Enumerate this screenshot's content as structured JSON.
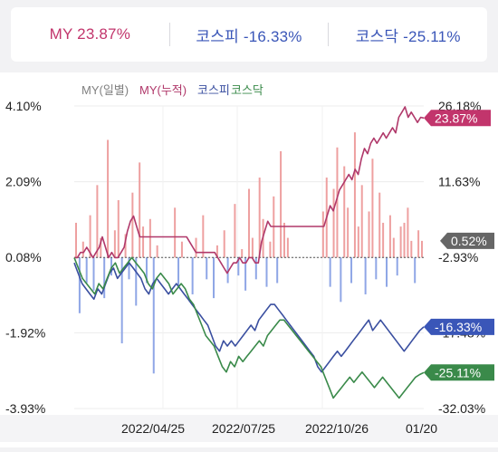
{
  "summary": {
    "my": {
      "label": "MY",
      "value": "23.87%",
      "color": "#c2356c"
    },
    "kospi": {
      "label": "코스피",
      "value": "-16.33%",
      "color": "#3a56b8"
    },
    "kosdaq": {
      "label": "코스닥",
      "value": "-25.11%",
      "color": "#3a56b8"
    }
  },
  "chart_data": {
    "type": "line",
    "legend": {
      "position": "top-left",
      "entries": [
        {
          "name": "MY(일별)",
          "color": "#808080"
        },
        {
          "name": "MY(누적)",
          "color": "#b0386a"
        },
        {
          "name": "코스피",
          "color": "#3a4fa0"
        },
        {
          "name": "코스닥",
          "color": "#3a8a4a"
        }
      ]
    },
    "left_axis": {
      "ticks": [
        "4.10%",
        "2.09%",
        "0.08%",
        "-1.92%",
        "-3.93%"
      ],
      "values": [
        4.1,
        2.09,
        0.08,
        -1.92,
        -3.93
      ],
      "range": [
        -3.93,
        4.1
      ]
    },
    "right_axis": {
      "ticks": [
        "26.18%",
        "11.63%",
        "-2.93%",
        "-17.48%",
        "-32.03%"
      ],
      "values": [
        26.18,
        11.63,
        -2.93,
        -17.48,
        -32.03
      ],
      "range": [
        -32.03,
        26.18
      ]
    },
    "x_labels": [
      "2022/04/25",
      "2022/07/25",
      "2022/10/26",
      "01/20"
    ],
    "end_labels": [
      {
        "text": "23.87%",
        "color": "#c2356c"
      },
      {
        "text": "0.52%",
        "color": "#666666"
      },
      {
        "text": "-16.33%",
        "color": "#3a56b8"
      },
      {
        "text": "-25.11%",
        "color": "#3a8a4a"
      }
    ],
    "series": [
      {
        "name": "MY(누적)",
        "axis": "right",
        "color": "#b0386a",
        "values": [
          -3,
          -3,
          -2,
          -2,
          -1,
          -2,
          -3,
          -2,
          -1,
          1,
          -1,
          -3,
          -2,
          -3,
          -3,
          -2,
          -1,
          2,
          4,
          5,
          3,
          1,
          1,
          1,
          1,
          1,
          1,
          1,
          1,
          1,
          1,
          1,
          1,
          1,
          1,
          1,
          1,
          0,
          -1,
          -2,
          -2,
          -2,
          -2,
          -2,
          -2,
          -2,
          -3,
          -4,
          -5,
          -6,
          -5,
          -4,
          -4,
          -3,
          -4,
          -4,
          -3,
          -3,
          -4,
          -4,
          0,
          2,
          4,
          3,
          3,
          3,
          3,
          3,
          3,
          3,
          3,
          3,
          3,
          3,
          3,
          3,
          3,
          3,
          3,
          3,
          3,
          5,
          7,
          6,
          8,
          10,
          11,
          12,
          13,
          12,
          14,
          13,
          16,
          18,
          17,
          19,
          20,
          19,
          20,
          21,
          20,
          21,
          22,
          21,
          24,
          25,
          26,
          24,
          25,
          24,
          23,
          24,
          23.87
        ]
      },
      {
        "name": "코스피",
        "axis": "right",
        "color": "#3a4fa0",
        "values": [
          -4,
          -6,
          -8,
          -9,
          -10,
          -11,
          -9,
          -10,
          -8,
          -6,
          -5,
          -7,
          -6,
          -5,
          -4,
          -5,
          -6,
          -7,
          -9,
          -10,
          -8,
          -7,
          -8,
          -9,
          -10,
          -9,
          -8,
          -9,
          -10,
          -11,
          -12,
          -13,
          -14,
          -15,
          -16,
          -18,
          -20,
          -21,
          -19,
          -20,
          -19,
          -20,
          -19,
          -18,
          -17,
          -16,
          -17,
          -15,
          -14,
          -13,
          -12,
          -12,
          -13,
          -14,
          -15,
          -16,
          -17,
          -18,
          -19,
          -20,
          -21,
          -22,
          -24,
          -25,
          -24,
          -23,
          -22,
          -21,
          -22,
          -21,
          -20,
          -19,
          -18,
          -17,
          -16,
          -15,
          -17,
          -16,
          -15,
          -16,
          -17,
          -18,
          -19,
          -20,
          -21,
          -20,
          -19,
          -18,
          -17,
          -16.33
        ]
      },
      {
        "name": "코스닥",
        "axis": "right",
        "color": "#3a8a4a",
        "values": [
          -3,
          -5,
          -7,
          -8,
          -9,
          -10,
          -8,
          -9,
          -7,
          -5,
          -4,
          -6,
          -5,
          -4,
          -3,
          -4,
          -5,
          -6,
          -8,
          -9,
          -7,
          -6,
          -7,
          -8,
          -10,
          -9,
          -8,
          -9,
          -11,
          -12,
          -14,
          -16,
          -18,
          -19,
          -20,
          -22,
          -24,
          -25,
          -23,
          -24,
          -22,
          -23,
          -22,
          -21,
          -20,
          -19,
          -20,
          -18,
          -17,
          -16,
          -15,
          -15,
          -16,
          -17,
          -18,
          -19,
          -20,
          -21,
          -22,
          -23,
          -24,
          -26,
          -28,
          -30,
          -29,
          -28,
          -27,
          -26,
          -27,
          -26,
          -25,
          -26,
          -27,
          -28,
          -27,
          -26,
          -27,
          -28,
          -29,
          -30,
          -29,
          -28,
          -27,
          -26,
          -25.5,
          -25.11
        ]
      }
    ],
    "daily_bars": {
      "name": "MY(일별)",
      "axis": "left",
      "positive_color": "#eea0a0",
      "negative_color": "#8fa6e6",
      "values": [
        1.0,
        -1.4,
        0.5,
        -0.6,
        1.2,
        -0.8,
        2.0,
        0.6,
        -1.0,
        3.2,
        -0.4,
        0.8,
        1.6,
        -2.2,
        0.7,
        -0.5,
        1.8,
        -1.2,
        2.6,
        0.9,
        -0.6,
        1.1,
        -3.0,
        0.4,
        0.0,
        0.0,
        0.0,
        0.0,
        1.4,
        -0.7,
        0.5,
        0.0,
        0.0,
        -0.9,
        0.6,
        0.0,
        1.2,
        -0.5,
        0.0,
        -1.0,
        0.4,
        0.0,
        0.8,
        -0.6,
        0.0,
        1.5,
        -0.4,
        0.3,
        -0.8,
        1.9,
        0.6,
        -0.5,
        2.2,
        1.1,
        -0.7,
        0.5,
        1.7,
        -0.6,
        2.9,
        1.0,
        0.6,
        0.0,
        0.0,
        0.0,
        0.0,
        0.0,
        0.0,
        0.0,
        0.0,
        0.0,
        1.3,
        2.2,
        -0.7,
        1.9,
        3.0,
        -1.1,
        2.5,
        1.4,
        -0.6,
        3.4,
        0.9,
        2.0,
        -0.9,
        1.3,
        2.7,
        -0.5,
        1.8,
        1.0,
        -0.7,
        1.2,
        0.6,
        -0.4,
        0.9,
        1.0,
        1.4,
        0.52,
        -0.6,
        0.8,
        0.52
      ]
    }
  }
}
